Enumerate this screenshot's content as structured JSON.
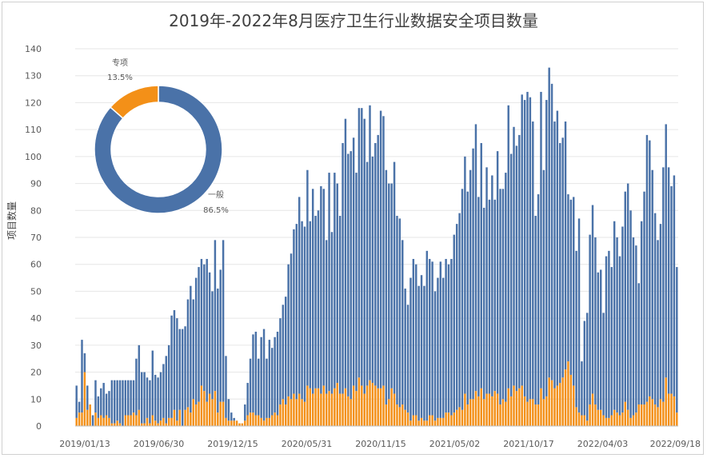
{
  "chart_data": {
    "type": "bar",
    "stacked": true,
    "title": "2019年-2022年8月医疗卫生行业数据安全项目数量",
    "ylabel": "项目数量",
    "ylim": [
      0,
      140
    ],
    "yticks": [
      0,
      10,
      20,
      30,
      40,
      50,
      60,
      70,
      80,
      90,
      100,
      110,
      120,
      130,
      140
    ],
    "x_tick_labels": [
      "2019/01/13",
      "2019/06/30",
      "2019/12/15",
      "2020/05/31",
      "2020/11/15",
      "2021/05/02",
      "2021/10/17",
      "2022/04/03",
      "2022/09/18"
    ],
    "colors": {
      "general": "#4a72a8",
      "special": "#f39018"
    },
    "series": [
      {
        "name": "一般",
        "values": [
          12,
          4,
          27,
          7,
          9,
          0,
          4,
          12,
          8,
          10,
          13,
          8,
          10,
          16,
          16,
          15,
          16,
          17,
          13,
          13,
          13,
          12,
          21,
          24,
          19,
          19,
          15,
          16,
          24,
          17,
          17,
          18,
          20,
          25,
          27,
          38,
          37,
          38,
          30,
          36,
          31,
          40,
          47,
          37,
          47,
          50,
          47,
          47,
          53,
          45,
          40,
          56,
          46,
          49,
          60,
          23,
          8,
          3,
          1,
          0,
          0,
          0,
          6,
          12,
          20,
          29,
          31,
          21,
          30,
          34,
          22,
          29,
          25,
          28,
          31,
          32,
          35,
          40,
          49,
          54,
          61,
          65,
          73,
          66,
          65,
          80,
          62,
          76,
          64,
          66,
          77,
          73,
          57,
          81,
          60,
          80,
          74,
          66,
          93,
          100,
          90,
          92,
          92,
          81,
          100,
          103,
          102,
          83,
          102,
          84,
          90,
          94,
          103,
          100,
          87,
          80,
          76,
          86,
          70,
          70,
          61,
          45,
          40,
          53,
          58,
          56,
          50,
          53,
          50,
          63,
          58,
          57,
          48,
          52,
          58,
          52,
          57,
          55,
          58,
          66,
          69,
          72,
          82,
          88,
          79,
          85,
          93,
          99,
          74,
          91,
          71,
          84,
          72,
          82,
          71,
          90,
          80,
          78,
          85,
          105,
          90,
          96,
          91,
          94,
          108,
          110,
          115,
          112,
          103,
          70,
          78,
          110,
          85,
          110,
          115,
          110,
          99,
          102,
          89,
          89,
          92,
          62,
          65,
          70,
          58,
          72,
          20,
          35,
          40,
          63,
          70,
          62,
          51,
          52,
          38,
          60,
          62,
          55,
          70,
          65,
          59,
          69,
          78,
          84,
          77,
          66,
          62,
          45,
          68,
          79,
          99,
          95,
          85,
          71,
          62,
          65,
          87,
          94,
          84,
          77,
          82,
          54
        ]
      },
      {
        "name": "专项",
        "values": [
          3,
          5,
          5,
          20,
          6,
          8,
          0,
          5,
          3,
          4,
          3,
          4,
          3,
          1,
          1,
          2,
          1,
          0,
          4,
          4,
          4,
          5,
          4,
          6,
          1,
          1,
          3,
          1,
          4,
          2,
          1,
          2,
          3,
          1,
          3,
          3,
          6,
          2,
          6,
          0,
          6,
          7,
          5,
          10,
          8,
          9,
          15,
          13,
          9,
          12,
          10,
          13,
          5,
          9,
          9,
          3,
          2,
          2,
          2,
          2,
          1,
          1,
          2,
          4,
          5,
          5,
          4,
          4,
          3,
          2,
          3,
          3,
          4,
          5,
          4,
          8,
          10,
          8,
          11,
          10,
          12,
          10,
          12,
          10,
          9,
          15,
          14,
          12,
          14,
          14,
          12,
          15,
          12,
          13,
          12,
          14,
          16,
          12,
          12,
          14,
          11,
          10,
          15,
          13,
          18,
          15,
          12,
          15,
          17,
          16,
          15,
          14,
          14,
          15,
          8,
          10,
          14,
          12,
          8,
          7,
          8,
          6,
          5,
          2,
          4,
          4,
          2,
          3,
          2,
          2,
          4,
          4,
          2,
          3,
          3,
          3,
          5,
          5,
          4,
          5,
          6,
          7,
          6,
          12,
          8,
          10,
          10,
          13,
          11,
          14,
          10,
          12,
          12,
          11,
          13,
          12,
          8,
          10,
          9,
          14,
          11,
          15,
          13,
          14,
          15,
          11,
          9,
          10,
          10,
          8,
          8,
          14,
          10,
          11,
          18,
          17,
          14,
          15,
          16,
          18,
          21,
          24,
          19,
          15,
          7,
          5,
          4,
          4,
          2,
          8,
          12,
          8,
          6,
          6,
          4,
          3,
          3,
          4,
          6,
          5,
          4,
          5,
          9,
          6,
          3,
          4,
          5,
          8,
          8,
          8,
          9,
          11,
          10,
          8,
          7,
          10,
          9,
          18,
          12,
          12,
          11,
          5
        ]
      }
    ],
    "inset_pie": {
      "type": "pie",
      "donut": true,
      "slices": [
        {
          "label": "一般",
          "value_label": "86.5%",
          "value": 86.5,
          "color": "#4a72a8"
        },
        {
          "label": "专项",
          "value_label": "13.5%",
          "value": 13.5,
          "color": "#f39018"
        }
      ]
    }
  }
}
